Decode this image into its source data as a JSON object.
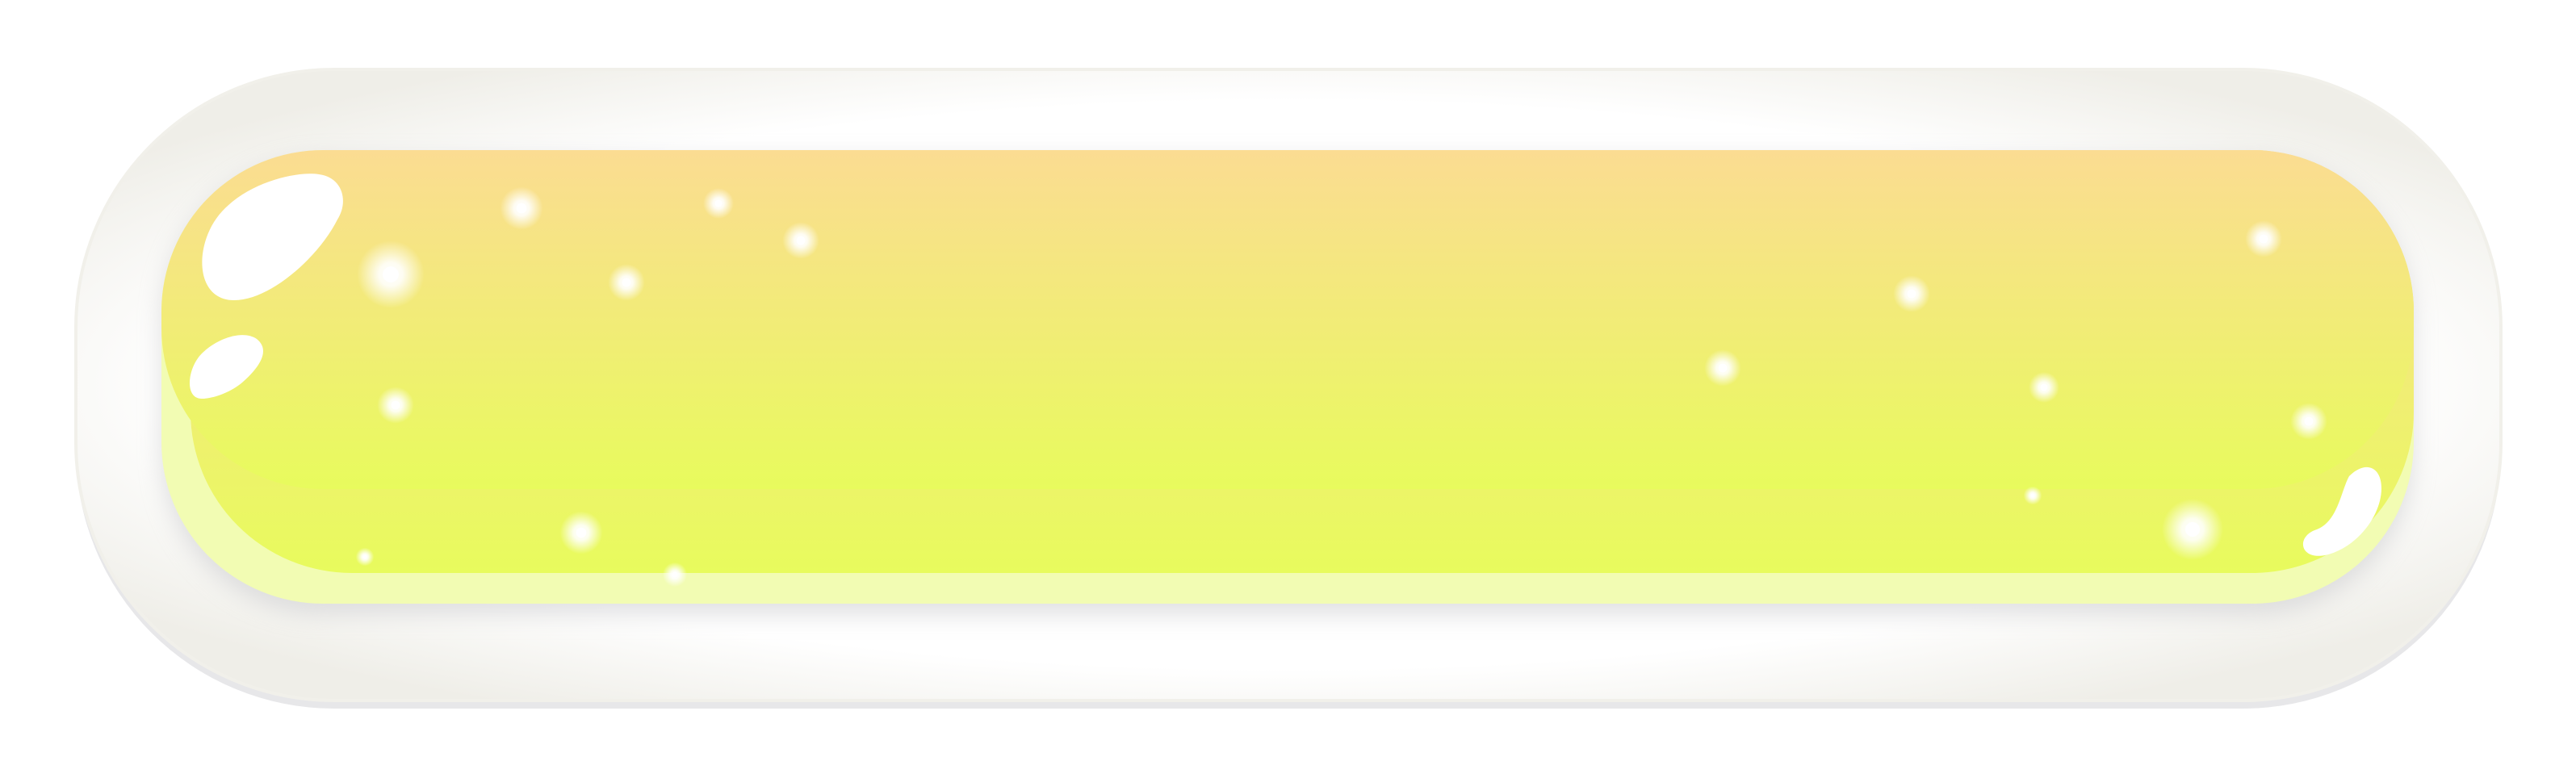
{
  "button": {
    "label": "",
    "colors": {
      "frame_outer": "#f4f3ee",
      "frame_inner": "#ffffff",
      "frame_shadow": "#e7e7e9",
      "fill_top": "#fbdc92",
      "fill_bottom": "#e8fb5d",
      "inner_glow": "#f2fcb3",
      "sparkle": "#ffffff"
    }
  }
}
